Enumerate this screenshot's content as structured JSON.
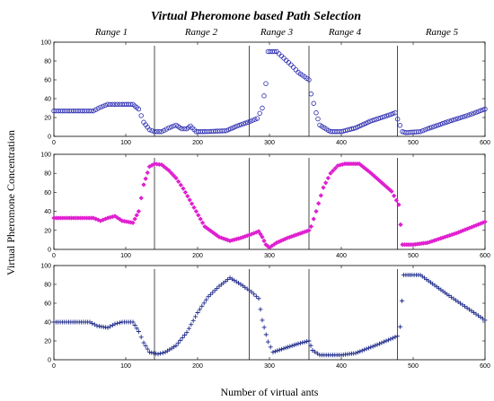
{
  "figure": {
    "title": "Virtual Pheromone based Path Selection",
    "xlabel": "Number of virtual ants",
    "ylabel": "Virtual Pheromone Concentration",
    "range_labels": [
      {
        "label": "Range 1",
        "x": 80
      },
      {
        "label": "Range 2",
        "x": 205
      },
      {
        "label": "Range 3",
        "x": 310
      },
      {
        "label": "Range 4",
        "x": 405
      },
      {
        "label": "Range 5",
        "x": 540
      }
    ]
  },
  "chart_data": [
    {
      "type": "scatter",
      "marker": "circle",
      "color": "#2b2bb0",
      "xlim": [
        0,
        600
      ],
      "ylim": [
        0,
        100
      ],
      "xticks": [
        0,
        100,
        200,
        300,
        400,
        500,
        600
      ],
      "yticks": [
        0,
        20,
        40,
        60,
        80,
        100
      ],
      "vlines": [
        140,
        272,
        355,
        478
      ],
      "points": [
        [
          0,
          27
        ],
        [
          55,
          27
        ],
        [
          65,
          31
        ],
        [
          75,
          34
        ],
        [
          85,
          34
        ],
        [
          95,
          34
        ],
        [
          110,
          34
        ],
        [
          118,
          29
        ],
        [
          125,
          15
        ],
        [
          133,
          7
        ],
        [
          140,
          5
        ],
        [
          150,
          5
        ],
        [
          160,
          9
        ],
        [
          170,
          12
        ],
        [
          178,
          8
        ],
        [
          185,
          8
        ],
        [
          190,
          11
        ],
        [
          198,
          5
        ],
        [
          210,
          5
        ],
        [
          240,
          6
        ],
        [
          255,
          11
        ],
        [
          270,
          15
        ],
        [
          283,
          19
        ],
        [
          290,
          30
        ],
        [
          295,
          56
        ],
        [
          298,
          90
        ],
        [
          310,
          90
        ],
        [
          320,
          83
        ],
        [
          330,
          76
        ],
        [
          340,
          68
        ],
        [
          355,
          60
        ],
        [
          358,
          45
        ],
        [
          365,
          25
        ],
        [
          370,
          12
        ],
        [
          385,
          5
        ],
        [
          400,
          5
        ],
        [
          420,
          9
        ],
        [
          440,
          16
        ],
        [
          460,
          21
        ],
        [
          475,
          25
        ],
        [
          485,
          5
        ],
        [
          490,
          4
        ],
        [
          510,
          5
        ],
        [
          520,
          8
        ],
        [
          550,
          16
        ],
        [
          575,
          22
        ],
        [
          600,
          29
        ]
      ]
    },
    {
      "type": "scatter",
      "marker": "diamond",
      "color": "#e020d0",
      "xlim": [
        0,
        600
      ],
      "ylim": [
        0,
        100
      ],
      "xticks": [
        0,
        100,
        200,
        300,
        400,
        500,
        600
      ],
      "yticks": [
        0,
        20,
        40,
        60,
        80,
        100
      ],
      "vlines": [
        140,
        272,
        355,
        478
      ],
      "points": [
        [
          0,
          33
        ],
        [
          55,
          33
        ],
        [
          65,
          30
        ],
        [
          75,
          33
        ],
        [
          85,
          35
        ],
        [
          95,
          30
        ],
        [
          110,
          28
        ],
        [
          118,
          40
        ],
        [
          125,
          68
        ],
        [
          133,
          87
        ],
        [
          140,
          90
        ],
        [
          150,
          89
        ],
        [
          160,
          83
        ],
        [
          170,
          75
        ],
        [
          180,
          64
        ],
        [
          195,
          44
        ],
        [
          210,
          24
        ],
        [
          230,
          13
        ],
        [
          245,
          9
        ],
        [
          260,
          12
        ],
        [
          275,
          16
        ],
        [
          285,
          19
        ],
        [
          290,
          13
        ],
        [
          295,
          5
        ],
        [
          300,
          2
        ],
        [
          310,
          7
        ],
        [
          325,
          12
        ],
        [
          340,
          16
        ],
        [
          355,
          20
        ],
        [
          358,
          24
        ],
        [
          365,
          40
        ],
        [
          375,
          65
        ],
        [
          385,
          80
        ],
        [
          395,
          88
        ],
        [
          405,
          90
        ],
        [
          425,
          90
        ],
        [
          440,
          81
        ],
        [
          455,
          71
        ],
        [
          470,
          61
        ],
        [
          480,
          47
        ],
        [
          485,
          5
        ],
        [
          500,
          5
        ],
        [
          520,
          7
        ],
        [
          560,
          17
        ],
        [
          600,
          29
        ]
      ]
    },
    {
      "type": "scatter",
      "marker": "plus",
      "color": "#1e2a8a",
      "xlim": [
        0,
        600
      ],
      "ylim": [
        0,
        100
      ],
      "xticks": [
        0,
        100,
        200,
        300,
        400,
        500,
        600
      ],
      "yticks": [
        0,
        20,
        40,
        60,
        80,
        100
      ],
      "vlines": [
        140,
        272,
        355,
        478
      ],
      "points": [
        [
          0,
          40
        ],
        [
          50,
          40
        ],
        [
          60,
          36
        ],
        [
          75,
          34
        ],
        [
          85,
          38
        ],
        [
          95,
          40
        ],
        [
          110,
          40
        ],
        [
          118,
          30
        ],
        [
          125,
          18
        ],
        [
          133,
          8
        ],
        [
          145,
          6
        ],
        [
          155,
          8
        ],
        [
          170,
          15
        ],
        [
          185,
          29
        ],
        [
          200,
          50
        ],
        [
          215,
          67
        ],
        [
          230,
          78
        ],
        [
          245,
          87
        ],
        [
          260,
          80
        ],
        [
          275,
          72
        ],
        [
          285,
          65
        ],
        [
          290,
          42
        ],
        [
          298,
          19
        ],
        [
          305,
          8
        ],
        [
          320,
          12
        ],
        [
          340,
          17
        ],
        [
          355,
          20
        ],
        [
          360,
          10
        ],
        [
          370,
          5
        ],
        [
          400,
          5
        ],
        [
          420,
          7
        ],
        [
          450,
          16
        ],
        [
          478,
          25
        ],
        [
          482,
          35
        ],
        [
          487,
          90
        ],
        [
          510,
          90
        ],
        [
          530,
          79
        ],
        [
          550,
          68
        ],
        [
          575,
          55
        ],
        [
          600,
          42
        ]
      ]
    }
  ]
}
